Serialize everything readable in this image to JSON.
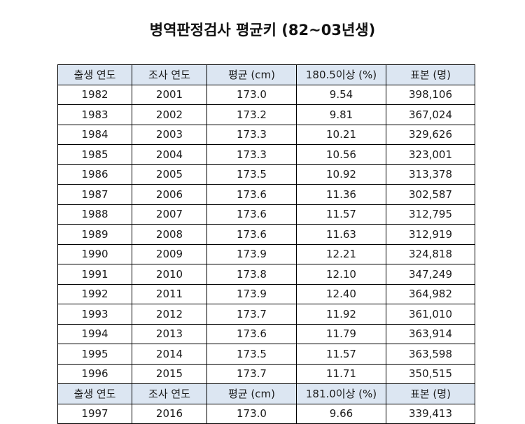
{
  "title": "병역판정검사 평균키 (82~03년생)",
  "colors": {
    "header_bg": "#dce6f2",
    "border": "#000000",
    "text": "#111111"
  },
  "table": {
    "headers": [
      "출생 연도",
      "조사 연도",
      "평균 (cm)",
      "180.5이상 (%)",
      "표본 (명)"
    ],
    "rows": [
      [
        "1982",
        "2001",
        "173.0",
        "9.54",
        "398,106"
      ],
      [
        "1983",
        "2002",
        "173.2",
        "9.81",
        "367,024"
      ],
      [
        "1984",
        "2003",
        "173.3",
        "10.21",
        "329,626"
      ],
      [
        "1985",
        "2004",
        "173.3",
        "10.56",
        "323,001"
      ],
      [
        "1986",
        "2005",
        "173.5",
        "10.92",
        "313,378"
      ],
      [
        "1987",
        "2006",
        "173.6",
        "11.36",
        "302,587"
      ],
      [
        "1988",
        "2007",
        "173.6",
        "11.57",
        "312,795"
      ],
      [
        "1989",
        "2008",
        "173.6",
        "11.63",
        "312,919"
      ],
      [
        "1990",
        "2009",
        "173.9",
        "12.21",
        "324,818"
      ],
      [
        "1991",
        "2010",
        "173.8",
        "12.10",
        "347,249"
      ],
      [
        "1992",
        "2011",
        "173.9",
        "12.40",
        "364,982"
      ],
      [
        "1993",
        "2012",
        "173.7",
        "11.92",
        "361,010"
      ],
      [
        "1994",
        "2013",
        "173.6",
        "11.79",
        "363,914"
      ],
      [
        "1995",
        "2014",
        "173.5",
        "11.57",
        "363,598"
      ],
      [
        "1996",
        "2015",
        "173.7",
        "11.71",
        "350,515"
      ]
    ],
    "headers2": [
      "출생 연도",
      "조사 연도",
      "평균 (cm)",
      "181.0이상 (%)",
      "표본 (명)"
    ],
    "rows2": [
      [
        "1997",
        "2016",
        "173.0",
        "9.66",
        "339,413"
      ]
    ]
  }
}
